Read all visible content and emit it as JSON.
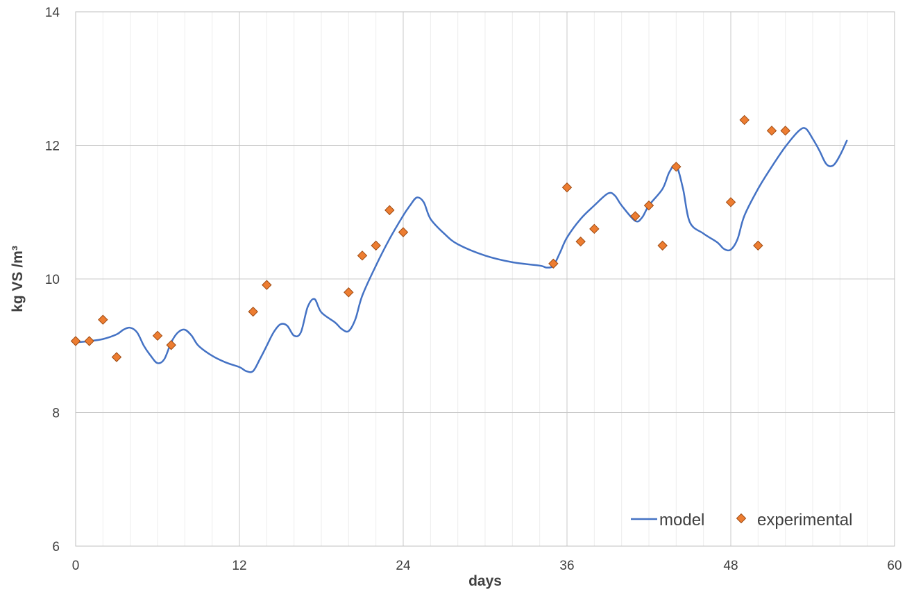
{
  "chart_data": {
    "type": "line",
    "title": "",
    "xlabel": "days",
    "ylabel": "kg VS /m³",
    "xlim": [
      0,
      60
    ],
    "ylim": [
      6,
      14
    ],
    "x_ticks": [
      0,
      12,
      24,
      36,
      48,
      60
    ],
    "y_ticks": [
      6,
      8,
      10,
      12,
      14
    ],
    "x_minor_gridline_step": 2,
    "grid": true,
    "legend_position": "bottom-right",
    "series": [
      {
        "name": "model",
        "type": "line",
        "color": "#4472C4",
        "points": [
          [
            0,
            9.05
          ],
          [
            1,
            9.07
          ],
          [
            2,
            9.1
          ],
          [
            3,
            9.17
          ],
          [
            3.5,
            9.24
          ],
          [
            4,
            9.27
          ],
          [
            4.5,
            9.2
          ],
          [
            5,
            9.0
          ],
          [
            5.5,
            8.85
          ],
          [
            6,
            8.74
          ],
          [
            6.5,
            8.8
          ],
          [
            7,
            9.05
          ],
          [
            7.5,
            9.2
          ],
          [
            8,
            9.24
          ],
          [
            8.5,
            9.15
          ],
          [
            9,
            9.0
          ],
          [
            10,
            8.85
          ],
          [
            11,
            8.75
          ],
          [
            12,
            8.68
          ],
          [
            12.5,
            8.62
          ],
          [
            13,
            8.62
          ],
          [
            13.5,
            8.8
          ],
          [
            14,
            9.0
          ],
          [
            14.5,
            9.2
          ],
          [
            15,
            9.32
          ],
          [
            15.5,
            9.3
          ],
          [
            16,
            9.15
          ],
          [
            16.5,
            9.2
          ],
          [
            17,
            9.58
          ],
          [
            17.5,
            9.7
          ],
          [
            18,
            9.5
          ],
          [
            19,
            9.35
          ],
          [
            19.5,
            9.25
          ],
          [
            20,
            9.22
          ],
          [
            20.5,
            9.4
          ],
          [
            21,
            9.75
          ],
          [
            22,
            10.2
          ],
          [
            23,
            10.6
          ],
          [
            24,
            10.95
          ],
          [
            24.5,
            11.1
          ],
          [
            25,
            11.22
          ],
          [
            25.5,
            11.15
          ],
          [
            26,
            10.9
          ],
          [
            27,
            10.68
          ],
          [
            28,
            10.52
          ],
          [
            30,
            10.35
          ],
          [
            32,
            10.25
          ],
          [
            34,
            10.2
          ],
          [
            34.5,
            10.17
          ],
          [
            35,
            10.2
          ],
          [
            35.5,
            10.4
          ],
          [
            36,
            10.62
          ],
          [
            37,
            10.9
          ],
          [
            38,
            11.1
          ],
          [
            39,
            11.28
          ],
          [
            39.5,
            11.25
          ],
          [
            40,
            11.1
          ],
          [
            41,
            10.87
          ],
          [
            41.5,
            10.92
          ],
          [
            42,
            11.1
          ],
          [
            43,
            11.35
          ],
          [
            43.5,
            11.6
          ],
          [
            44,
            11.7
          ],
          [
            44.5,
            11.35
          ],
          [
            45,
            10.85
          ],
          [
            46,
            10.68
          ],
          [
            47,
            10.55
          ],
          [
            47.5,
            10.45
          ],
          [
            48,
            10.44
          ],
          [
            48.5,
            10.6
          ],
          [
            49,
            10.95
          ],
          [
            50,
            11.35
          ],
          [
            51,
            11.68
          ],
          [
            52,
            11.98
          ],
          [
            53,
            12.22
          ],
          [
            53.5,
            12.25
          ],
          [
            54,
            12.1
          ],
          [
            54.5,
            11.92
          ],
          [
            55,
            11.72
          ],
          [
            55.5,
            11.7
          ],
          [
            56,
            11.85
          ],
          [
            56.5,
            12.07
          ]
        ]
      },
      {
        "name": "experimental",
        "type": "scatter",
        "marker": "diamond",
        "color": "#ED7D31",
        "points": [
          [
            0,
            9.07
          ],
          [
            1,
            9.07
          ],
          [
            2,
            9.39
          ],
          [
            3,
            8.83
          ],
          [
            6,
            9.15
          ],
          [
            7,
            9.01
          ],
          [
            13,
            9.51
          ],
          [
            14,
            9.91
          ],
          [
            20,
            9.8
          ],
          [
            21,
            10.35
          ],
          [
            22,
            10.5
          ],
          [
            23,
            11.03
          ],
          [
            24,
            10.7
          ],
          [
            35,
            10.23
          ],
          [
            36,
            11.37
          ],
          [
            37,
            10.56
          ],
          [
            38,
            10.75
          ],
          [
            41,
            10.94
          ],
          [
            42,
            11.1
          ],
          [
            43,
            10.5
          ],
          [
            44,
            11.68
          ],
          [
            48,
            11.15
          ],
          [
            49,
            12.38
          ],
          [
            50,
            10.5
          ],
          [
            51,
            12.22
          ],
          [
            52,
            12.22
          ]
        ]
      }
    ]
  }
}
